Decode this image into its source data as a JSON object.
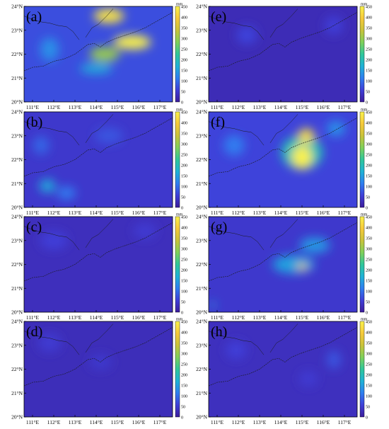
{
  "chart_data": {
    "type": "heatmap",
    "layout": "4 rows x 2 columns of precipitation maps",
    "variable_unit": "mm",
    "colorbar": {
      "unit": "mm",
      "ticks": [
        0,
        50,
        100,
        150,
        200,
        250,
        300,
        350,
        400,
        450
      ],
      "range": [
        0,
        450
      ],
      "colormap": [
        "#3c1d9b",
        "#3f3fd8",
        "#2f7ef0",
        "#1fb2d6",
        "#2fc79a",
        "#7fd05a",
        "#c9c33a",
        "#f6c93a",
        "#f9f14b"
      ]
    },
    "lon_ticks": [
      "111°E",
      "112°E",
      "113°E",
      "114°E",
      "115°E",
      "116°E",
      "117°E"
    ],
    "lat_ticks": [
      "24°N",
      "23°N",
      "22°N",
      "21°N",
      "20°N"
    ],
    "lon_range": [
      110.6,
      117.6
    ],
    "lat_range": [
      20,
      24
    ],
    "panels": [
      {
        "label": "(a)",
        "background_mm": 70,
        "hotspots": [
          {
            "lon": 114.6,
            "lat": 23.6,
            "value_mm": 430,
            "spread_lon": 1.3,
            "spread_lat": 0.55
          },
          {
            "lon": 115.7,
            "lat": 22.5,
            "value_mm": 450,
            "spread_lon": 1.6,
            "spread_lat": 0.55
          },
          {
            "lon": 114.4,
            "lat": 22.0,
            "value_mm": 300,
            "spread_lon": 1.3,
            "spread_lat": 0.55
          },
          {
            "lon": 114.0,
            "lat": 21.4,
            "value_mm": 160,
            "spread_lon": 1.4,
            "spread_lat": 0.4
          },
          {
            "lon": 111.8,
            "lat": 22.2,
            "value_mm": 130,
            "spread_lon": 0.8,
            "spread_lat": 0.9
          }
        ]
      },
      {
        "label": "(e)",
        "background_mm": 25,
        "hotspots": [
          {
            "lon": 112.4,
            "lat": 22.8,
            "value_mm": 60,
            "spread_lon": 0.9,
            "spread_lat": 0.7
          },
          {
            "lon": 116.5,
            "lat": 23.2,
            "value_mm": 55,
            "spread_lon": 0.8,
            "spread_lat": 0.7
          }
        ]
      },
      {
        "label": "(b)",
        "background_mm": 45,
        "hotspots": [
          {
            "lon": 111.7,
            "lat": 20.9,
            "value_mm": 160,
            "spread_lon": 0.7,
            "spread_lat": 0.5
          },
          {
            "lon": 112.6,
            "lat": 20.6,
            "value_mm": 110,
            "spread_lon": 0.8,
            "spread_lat": 0.5
          },
          {
            "lon": 111.4,
            "lat": 22.6,
            "value_mm": 90,
            "spread_lon": 0.7,
            "spread_lat": 0.7
          },
          {
            "lon": 114.6,
            "lat": 23.0,
            "value_mm": 75,
            "spread_lon": 1.2,
            "spread_lat": 0.6
          }
        ]
      },
      {
        "label": "(f)",
        "background_mm": 60,
        "hotspots": [
          {
            "lon": 115.0,
            "lat": 22.1,
            "value_mm": 450,
            "spread_lon": 0.85,
            "spread_lat": 0.9
          },
          {
            "lon": 115.2,
            "lat": 23.0,
            "value_mm": 420,
            "spread_lon": 0.7,
            "spread_lat": 0.55
          },
          {
            "lon": 115.0,
            "lat": 22.3,
            "value_mm": 200,
            "spread_lon": 1.8,
            "spread_lat": 1.3
          },
          {
            "lon": 111.8,
            "lat": 22.6,
            "value_mm": 110,
            "spread_lon": 0.9,
            "spread_lat": 0.8
          },
          {
            "lon": 116.6,
            "lat": 23.3,
            "value_mm": 130,
            "spread_lon": 0.8,
            "spread_lat": 0.6
          }
        ]
      },
      {
        "label": "(c)",
        "background_mm": 30,
        "hotspots": [
          {
            "lon": 112.0,
            "lat": 23.0,
            "value_mm": 55,
            "spread_lon": 1.2,
            "spread_lat": 0.7
          },
          {
            "lon": 116.3,
            "lat": 23.4,
            "value_mm": 50,
            "spread_lon": 1.0,
            "spread_lat": 0.6
          }
        ]
      },
      {
        "label": "(g)",
        "background_mm": 45,
        "hotspots": [
          {
            "lon": 115.0,
            "lat": 21.9,
            "value_mm": 390,
            "spread_lon": 0.45,
            "spread_lat": 0.22
          },
          {
            "lon": 114.6,
            "lat": 22.0,
            "value_mm": 150,
            "spread_lon": 1.8,
            "spread_lat": 0.7
          },
          {
            "lon": 115.6,
            "lat": 22.8,
            "value_mm": 140,
            "spread_lon": 1.3,
            "spread_lat": 0.6
          },
          {
            "lon": 110.8,
            "lat": 20.3,
            "value_mm": 140,
            "spread_lon": 0.25,
            "spread_lat": 0.25
          }
        ]
      },
      {
        "label": "(d)",
        "background_mm": 28,
        "hotspots": [
          {
            "lon": 111.8,
            "lat": 23.1,
            "value_mm": 50,
            "spread_lon": 1.0,
            "spread_lat": 0.7
          },
          {
            "lon": 114.2,
            "lat": 22.3,
            "value_mm": 45,
            "spread_lon": 1.0,
            "spread_lat": 0.6
          }
        ]
      },
      {
        "label": "(h)",
        "background_mm": 32,
        "hotspots": [
          {
            "lon": 116.5,
            "lat": 22.4,
            "value_mm": 75,
            "spread_lon": 0.6,
            "spread_lat": 0.7
          },
          {
            "lon": 111.9,
            "lat": 22.8,
            "value_mm": 55,
            "spread_lon": 0.9,
            "spread_lat": 0.7
          },
          {
            "lon": 115.3,
            "lat": 21.6,
            "value_mm": 50,
            "spread_lon": 0.8,
            "spread_lat": 0.6
          }
        ]
      }
    ]
  }
}
